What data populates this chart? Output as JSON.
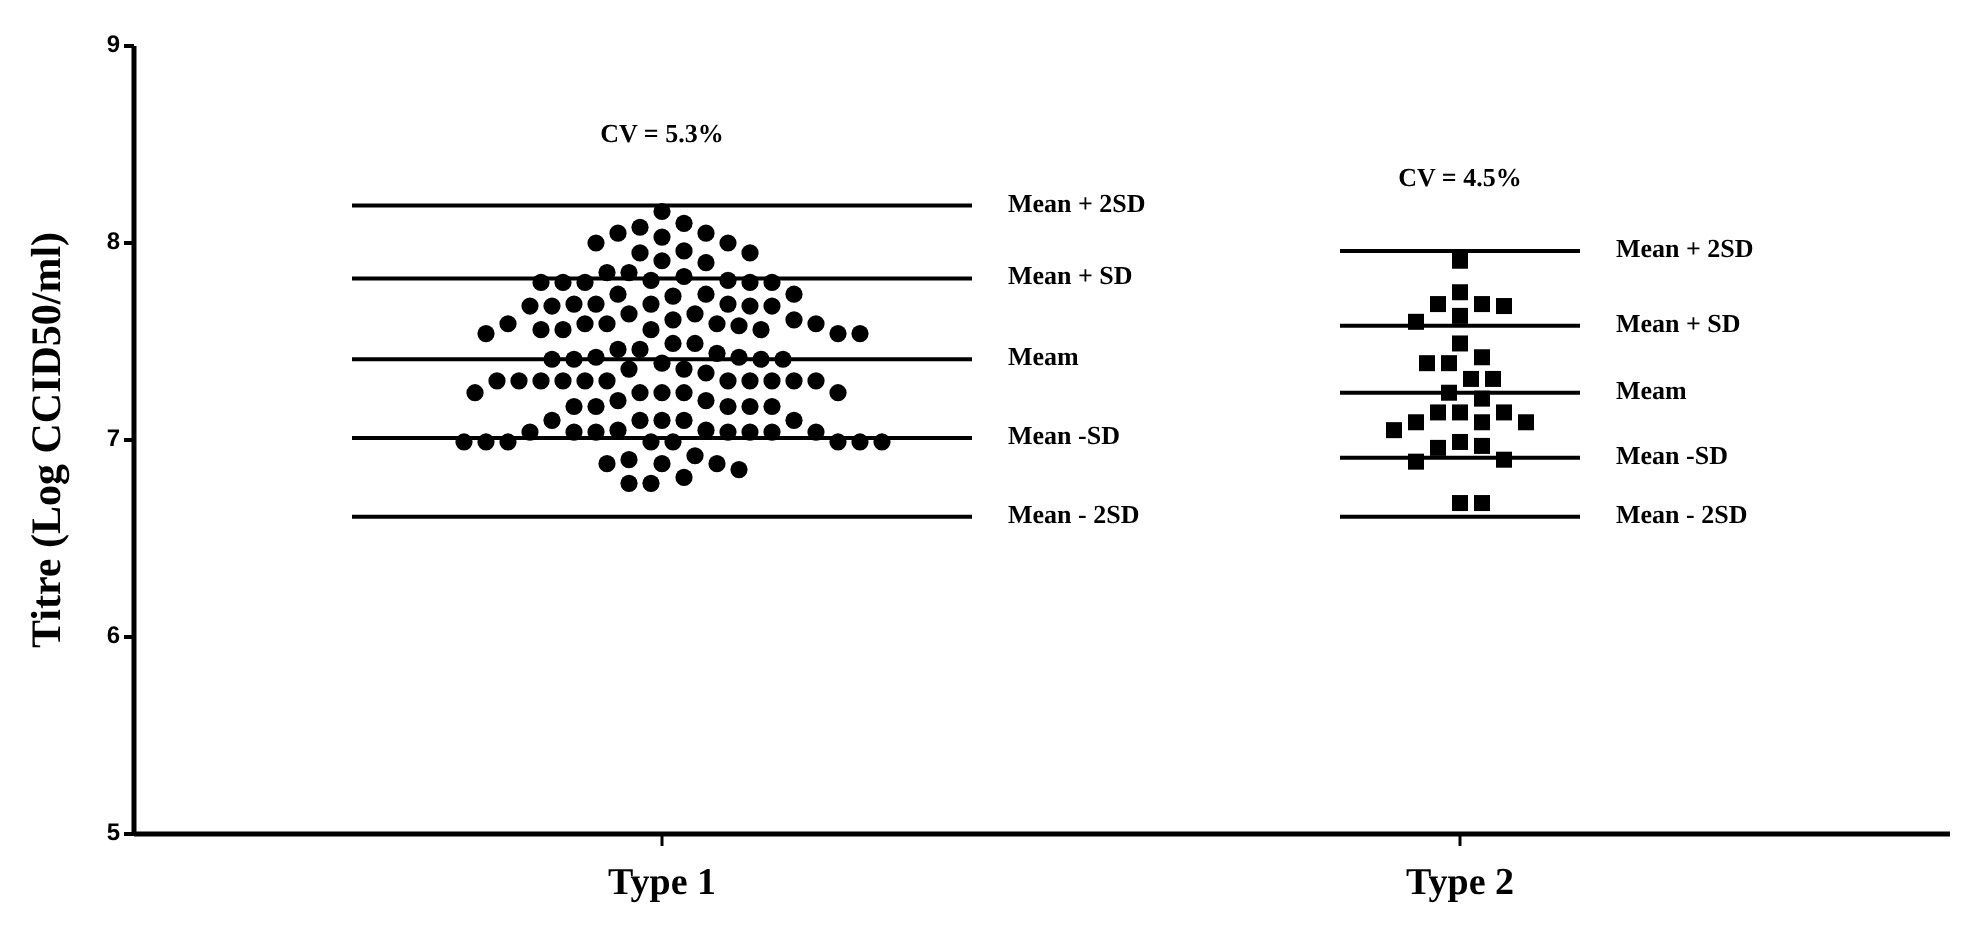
{
  "chart_data": [
    {
      "type": "scatter",
      "ylabel": "Titre (Log CCID50/ml)",
      "categories": [
        "Type 1"
      ],
      "ylim": [
        5,
        9
      ],
      "yticks": [
        5,
        6,
        7,
        8,
        9
      ],
      "marker": "circle",
      "series": [
        {
          "color": "#000000",
          "x": [
            "Type 1",
            "Type 1",
            "Type 1",
            "Type 1",
            "Type 1",
            "Type 1",
            "Type 1",
            "Type 1",
            "Type 1",
            "Type 1",
            "Type 1",
            "Type 1",
            "Type 1",
            "Type 1",
            "Type 1",
            "Type 1",
            "Type 1",
            "Type 1",
            "Type 1",
            "Type 1",
            "Type 1",
            "Type 1",
            "Type 1",
            "Type 1",
            "Type 1",
            "Type 1",
            "Type 1",
            "Type 1",
            "Type 1",
            "Type 1",
            "Type 1",
            "Type 1",
            "Type 1",
            "Type 1",
            "Type 1",
            "Type 1",
            "Type 1",
            "Type 1",
            "Type 1",
            "Type 1",
            "Type 1",
            "Type 1",
            "Type 1",
            "Type 1",
            "Type 1",
            "Type 1",
            "Type 1",
            "Type 1",
            "Type 1",
            "Type 1",
            "Type 1",
            "Type 1",
            "Type 1",
            "Type 1",
            "Type 1",
            "Type 1",
            "Type 1",
            "Type 1",
            "Type 1",
            "Type 1",
            "Type 1",
            "Type 1",
            "Type 1",
            "Type 1",
            "Type 1",
            "Type 1",
            "Type 1",
            "Type 1",
            "Type 1",
            "Type 1",
            "Type 1",
            "Type 1",
            "Type 1",
            "Type 1",
            "Type 1",
            "Type 1",
            "Type 1",
            "Type 1",
            "Type 1",
            "Type 1",
            "Type 1",
            "Type 1",
            "Type 1",
            "Type 1",
            "Type 1",
            "Type 1",
            "Type 1",
            "Type 1",
            "Type 1",
            "Type 1",
            "Type 1",
            "Type 1",
            "Type 1",
            "Type 1",
            "Type 1",
            "Type 1",
            "Type 1",
            "Type 1",
            "Type 1",
            "Type 1",
            "Type 1",
            "Type 1",
            "Type 1",
            "Type 1",
            "Type 1",
            "Type 1",
            "Type 1",
            "Type 1",
            "Type 1",
            "Type 1",
            "Type 1",
            "Type 1",
            "Type 1",
            "Type 1",
            "Type 1",
            "Type 1",
            "Type 1",
            "Type 1",
            "Type 1",
            "Type 1",
            "Type 1"
          ],
          "values": [
            7.04,
            7.1,
            7.59,
            7.41,
            7.24,
            7.1,
            7.69,
            7.56,
            7.41,
            7.24,
            7.04,
            7.81,
            7.59,
            7.49,
            7.3,
            6.99,
            7.91,
            7.74,
            7.64,
            7.34,
            7.2,
            6.99,
            7.85,
            7.73,
            7.61,
            7.49,
            7.36,
            7.17,
            7.04,
            8.0,
            7.8,
            7.68,
            7.56,
            7.39,
            7.24,
            7.1,
            6.88,
            8.08,
            7.95,
            7.81,
            7.68,
            7.56,
            7.3,
            7.2,
            6.99,
            6.81,
            7.96,
            7.83,
            7.69,
            7.54,
            7.41,
            7.3,
            7.1,
            6.88,
            8.05,
            7.8,
            7.59,
            7.3,
            7.17,
            6.99,
            6.78,
            8.05,
            7.54,
            7.42,
            7.3,
            6.99,
            6.78,
            8.1,
            7.95,
            7.8,
            7.64,
            7.44,
            7.3,
            7.05,
            6.88,
            8.03,
            7.8,
            7.59,
            7.36,
            7.24,
            6.99,
            6.85,
            8.16,
            8.0,
            7.8,
            7.68,
            7.58,
            7.46,
            7.3,
            7.17,
            7.05,
            6.9,
            7.68,
            7.56,
            7.3,
            7.17,
            6.99,
            7.9,
            7.74,
            7.61,
            7.46,
            7.3,
            7.17,
            6.99,
            7.85,
            7.69,
            7.54,
            7.3,
            7.1,
            6.92,
            7.74,
            7.59,
            7.42,
            7.3,
            7.04,
            7.69,
            7.41,
            7.24,
            7.04,
            7.04,
            7.04
          ]
        }
      ],
      "ref_lines": [
        {
          "axis": "y",
          "value": 8.19,
          "label": "Mean + 2SD"
        },
        {
          "axis": "y",
          "value": 7.82,
          "label": "Mean + SD"
        },
        {
          "axis": "y",
          "value": 7.41,
          "label": "Meam"
        },
        {
          "axis": "y",
          "value": 7.01,
          "label": "Mean -SD"
        },
        {
          "axis": "y",
          "value": 6.61,
          "label": "Mean - 2SD"
        }
      ],
      "annotations": [
        "CV = 5.3%"
      ]
    },
    {
      "type": "scatter",
      "categories": [
        "Type 2"
      ],
      "ylim": [
        5,
        9
      ],
      "tick_labels": "x",
      "marker": "square",
      "series": [
        {
          "color": "#000000",
          "x": [
            "Type 2",
            "Type 2",
            "Type 2",
            "Type 2",
            "Type 2",
            "Type 2",
            "Type 2",
            "Type 2",
            "Type 2",
            "Type 2",
            "Type 2",
            "Type 2",
            "Type 2",
            "Type 2",
            "Type 2",
            "Type 2",
            "Type 2",
            "Type 2",
            "Type 2",
            "Type 2",
            "Type 2",
            "Type 2",
            "Type 2",
            "Type 2",
            "Type 2",
            "Type 2",
            "Type 2",
            "Type 2",
            "Type 2"
          ],
          "values": [
            7.14,
            7.69,
            7.39,
            7.24,
            7.09,
            7.75,
            7.68,
            7.63,
            7.49,
            7.21,
            7.05,
            6.97,
            6.9,
            6.68,
            6.68,
            7.91,
            7.31,
            7.09,
            6.96,
            7.6,
            7.39,
            7.09,
            6.89,
            7.69,
            7.42,
            7.31,
            7.14,
            6.99,
            7.14
          ]
        }
      ],
      "ref_lines": [
        {
          "axis": "y",
          "value": 7.96,
          "label": "Mean + 2SD"
        },
        {
          "axis": "y",
          "value": 7.58,
          "label": "Mean + SD"
        },
        {
          "axis": "y",
          "value": 7.24,
          "label": "Meam"
        },
        {
          "axis": "y",
          "value": 6.91,
          "label": "Mean -SD"
        },
        {
          "axis": "y",
          "value": 6.61,
          "label": "Mean - 2SD"
        }
      ],
      "annotations": [
        "CV = 4.5%"
      ]
    }
  ]
}
